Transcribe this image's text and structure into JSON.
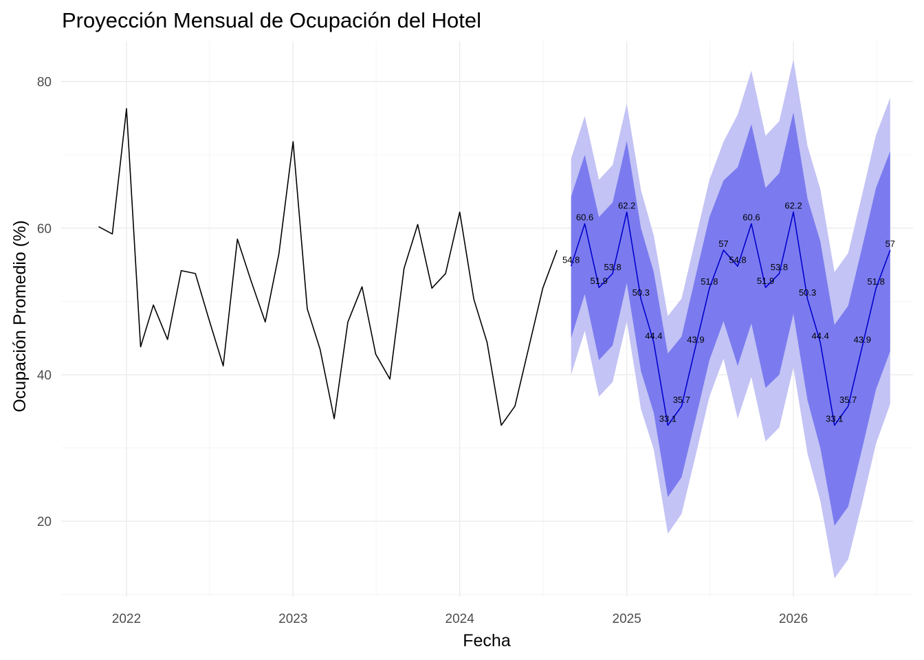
{
  "chart_data": {
    "type": "line",
    "title": "Proyección Mensual de Ocupación del Hotel",
    "xlabel": "Fecha",
    "ylabel": "Ocupación Promedio (%)",
    "xlim": [
      "2021-08-11",
      "2026-09-20"
    ],
    "ylim": [
      9.7,
      85.5
    ],
    "x_ticks": [
      "2022",
      "2023",
      "2024",
      "2025",
      "2026"
    ],
    "y_ticks": [
      20,
      40,
      60,
      80
    ],
    "grid": true,
    "legend": "none",
    "colors": {
      "history": "#000000",
      "forecast": "#0000cc",
      "band80": "#7b7bef",
      "band95": "#c3c3f5"
    },
    "series": [
      {
        "x": [
          "2021-11-01",
          "2021-12-01",
          "2022-01-01",
          "2022-02-01",
          "2022-03-01",
          "2022-04-01",
          "2022-05-01",
          "2022-06-01",
          "2022-07-01",
          "2022-08-01",
          "2022-09-01",
          "2022-10-01",
          "2022-11-01",
          "2022-12-01",
          "2023-01-01",
          "2023-02-01",
          "2023-03-01",
          "2023-04-01",
          "2023-05-01",
          "2023-06-01",
          "2023-07-01",
          "2023-08-01",
          "2023-09-01",
          "2023-10-01",
          "2023-11-01",
          "2023-12-01",
          "2024-01-01",
          "2024-02-01",
          "2024-03-01",
          "2024-04-01",
          "2024-05-01",
          "2024-06-01",
          "2024-07-01",
          "2024-08-01"
        ],
        "values": [
          60.2,
          59.2,
          76.3,
          43.8,
          49.5,
          44.8,
          54.2,
          53.8,
          47.5,
          41.2,
          58.5,
          52.8,
          47.2,
          56.5,
          71.8,
          49.0,
          43.5,
          34.0,
          47.2,
          52.0,
          42.8,
          39.4,
          54.5,
          60.5,
          51.8,
          53.8,
          62.2,
          50.3,
          44.4,
          33.1,
          35.7,
          43.9,
          51.8,
          57.0
        ]
      },
      {
        "x": [
          "2024-09-01",
          "2024-10-01",
          "2024-11-01",
          "2024-12-01",
          "2025-01-01",
          "2025-02-01",
          "2025-03-01",
          "2025-04-01",
          "2025-05-01",
          "2025-06-01",
          "2025-07-01",
          "2025-08-01",
          "2025-09-01",
          "2025-10-01",
          "2025-11-01",
          "2025-12-01",
          "2026-01-01",
          "2026-02-01",
          "2026-03-01",
          "2026-04-01",
          "2026-05-01",
          "2026-06-01",
          "2026-07-01",
          "2026-08-01"
        ],
        "values": [
          54.8,
          60.6,
          51.9,
          53.8,
          62.2,
          50.3,
          44.4,
          33.1,
          35.7,
          43.9,
          51.8,
          57.0,
          54.8,
          60.6,
          51.9,
          53.8,
          62.2,
          50.3,
          44.4,
          33.1,
          35.7,
          43.9,
          51.8,
          57.0
        ],
        "labels": [
          "54.8",
          "60.6",
          "51.9",
          "53.8",
          "62.2",
          "50.3",
          "44.4",
          "33.1",
          "35.7",
          "43.9",
          "51.8",
          "57",
          "54.8",
          "60.6",
          "51.9",
          "53.8",
          "62.2",
          "50.3",
          "44.4",
          "33.1",
          "35.7",
          "43.9",
          "51.8",
          "57"
        ],
        "lo80": [
          45.0,
          51.0,
          42.0,
          44.0,
          52.5,
          40.5,
          34.8,
          23.3,
          26.0,
          34.0,
          42.0,
          47.3,
          41.2,
          47.0,
          38.2,
          40.0,
          48.3,
          36.5,
          30.0,
          19.4,
          22.0,
          30.0,
          38.0,
          43.2
        ],
        "hi80": [
          64.3,
          70.0,
          61.5,
          63.5,
          71.9,
          60.0,
          54.0,
          42.9,
          45.2,
          53.5,
          61.5,
          66.5,
          68.3,
          74.2,
          65.5,
          67.5,
          75.8,
          64.0,
          58.2,
          46.8,
          49.4,
          57.5,
          65.5,
          70.5
        ],
        "lo95": [
          40.0,
          46.0,
          37.0,
          39.0,
          47.3,
          35.3,
          29.8,
          18.3,
          21.0,
          29.0,
          37.0,
          42.2,
          34.0,
          39.7,
          30.9,
          32.8,
          41.0,
          29.2,
          22.8,
          12.2,
          14.8,
          22.6,
          30.6,
          36.0
        ],
        "hi95": [
          69.5,
          75.3,
          66.6,
          68.6,
          77.0,
          65.2,
          59.0,
          48.0,
          50.4,
          58.6,
          66.6,
          71.8,
          75.5,
          81.5,
          72.6,
          74.6,
          83.0,
          71.2,
          65.3,
          54.0,
          56.6,
          64.7,
          72.7,
          77.8
        ]
      }
    ]
  }
}
